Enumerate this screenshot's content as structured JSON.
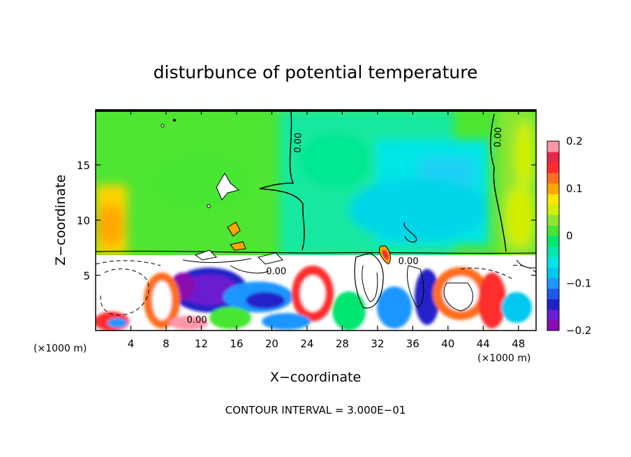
{
  "chart_data": {
    "type": "heatmap",
    "title": "disturbunce of potential temperature",
    "xlabel": "X−coordinate",
    "ylabel": "Z−coordinate",
    "x_unit_left": "(×1000 m)",
    "x_unit_right": "(×1000 m)",
    "xlim": [
      0,
      50
    ],
    "ylim": [
      0,
      20
    ],
    "x_ticks": [
      {
        "value": 4,
        "label": "4"
      },
      {
        "value": 8,
        "label": "8"
      },
      {
        "value": 12,
        "label": "12"
      },
      {
        "value": 16,
        "label": "16"
      },
      {
        "value": 20,
        "label": "20"
      },
      {
        "value": 24,
        "label": "24"
      },
      {
        "value": 28,
        "label": "28"
      },
      {
        "value": 32,
        "label": "32"
      },
      {
        "value": 36,
        "label": "36"
      },
      {
        "value": 40,
        "label": "40"
      },
      {
        "value": 44,
        "label": "44"
      },
      {
        "value": 48,
        "label": "48"
      }
    ],
    "y_ticks": [
      {
        "value": 5,
        "label": "5"
      },
      {
        "value": 10,
        "label": "10"
      },
      {
        "value": 15,
        "label": "15"
      }
    ],
    "colorbar": {
      "range": [
        -0.2,
        0.2
      ],
      "ticks": [
        {
          "value": 0.2,
          "label": "0.2"
        },
        {
          "value": 0.1,
          "label": "0.1"
        },
        {
          "value": 0,
          "label": "0"
        },
        {
          "value": -0.1,
          "label": "−0.1"
        },
        {
          "value": -0.2,
          "label": "−0.2"
        }
      ],
      "colors": [
        "#8a0db0",
        "#6a1fd0",
        "#2020c8",
        "#1f5ae6",
        "#1e96ff",
        "#00c8f0",
        "#00e6e6",
        "#00e8b0",
        "#00e670",
        "#46e632",
        "#8ce632",
        "#d2f000",
        "#ffe600",
        "#ffa800",
        "#ff6e1e",
        "#ff2d2d",
        "#e8284a",
        "#ff96a8"
      ]
    },
    "contour_labels": [
      {
        "text": "0.00",
        "x": 23.3,
        "z": 17.0
      },
      {
        "text": "0.00",
        "x": 46.0,
        "z": 17.5
      },
      {
        "text": "0.00",
        "x": 20.5,
        "z": 5.1
      },
      {
        "text": "0.00",
        "x": 11.5,
        "z": 0.7
      },
      {
        "text": "0.00",
        "x": 35.5,
        "z": 6.0
      }
    ],
    "footer": "CONTOUR INTERVAL = 3.000E−01"
  }
}
